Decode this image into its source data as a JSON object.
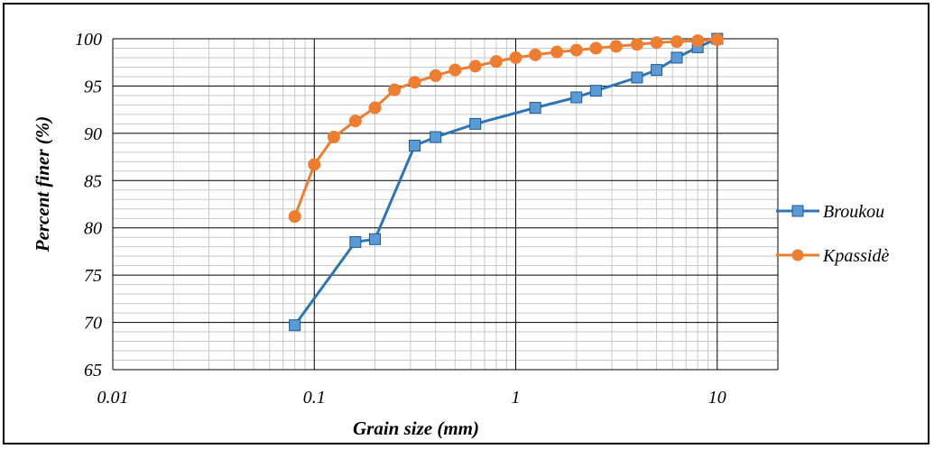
{
  "chart_data": {
    "type": "line",
    "xscale": "log",
    "xlim": [
      0.01,
      20
    ],
    "ylim": [
      65,
      100
    ],
    "xticks": [
      0.01,
      0.1,
      1,
      10
    ],
    "xtick_labels": [
      "0.01",
      "0.1",
      "1",
      "10"
    ],
    "yticks": [
      65,
      70,
      75,
      80,
      85,
      90,
      95,
      100
    ],
    "ytick_labels": [
      "65",
      "70",
      "75",
      "80",
      "85",
      "90",
      "95",
      "100"
    ],
    "xlabel": "Grain size (mm)",
    "ylabel": "Percent finer (%)",
    "grid": true,
    "legend_position": "right",
    "series": [
      {
        "name": "Broukou",
        "color": "#2E75B6",
        "marker": "square",
        "x": [
          0.08,
          0.16,
          0.2,
          0.315,
          0.4,
          0.63,
          1.25,
          2,
          2.5,
          4,
          5,
          6.3,
          8,
          10
        ],
        "y": [
          69.7,
          78.5,
          78.8,
          88.7,
          89.6,
          91.0,
          92.7,
          93.8,
          94.5,
          95.9,
          96.7,
          98.0,
          99.1,
          100
        ]
      },
      {
        "name": "Kpassidè",
        "color": "#ED7D31",
        "marker": "circle",
        "x": [
          0.08,
          0.1,
          0.125,
          0.16,
          0.2,
          0.25,
          0.315,
          0.4,
          0.5,
          0.63,
          0.8,
          1,
          1.25,
          1.6,
          2,
          2.5,
          3.15,
          4,
          5,
          6.3,
          8,
          10
        ],
        "y": [
          81.2,
          86.7,
          89.6,
          91.3,
          92.7,
          94.6,
          95.4,
          96.1,
          96.7,
          97.1,
          97.6,
          98.0,
          98.3,
          98.6,
          98.8,
          99.0,
          99.2,
          99.4,
          99.6,
          99.7,
          99.8,
          99.9
        ]
      }
    ]
  }
}
